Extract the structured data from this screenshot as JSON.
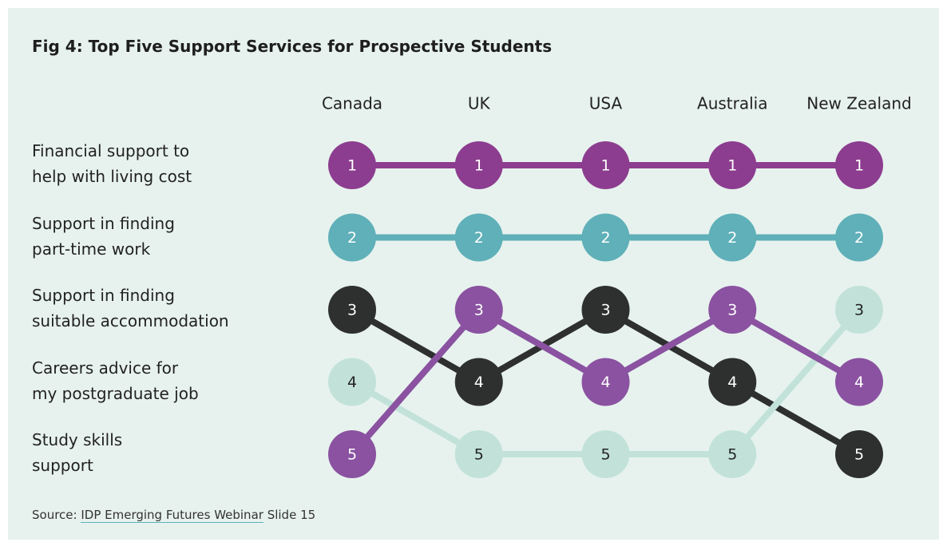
{
  "chart_data": {
    "type": "bump",
    "title": "Fig 4: Top Five Support Services for Prospective Students",
    "categories": [
      "Canada",
      "UK",
      "USA",
      "Australia",
      "New Zealand"
    ],
    "ylim": [
      1,
      5
    ],
    "series": [
      {
        "name": "Financial support to\nhelp with living cost",
        "color": "#8c3d8f",
        "text_color": "#ffffff",
        "values": [
          1,
          1,
          1,
          1,
          1
        ]
      },
      {
        "name": "Support in finding\npart-time work",
        "color": "#5fb0b8",
        "text_color": "#ffffff",
        "values": [
          2,
          2,
          2,
          2,
          2
        ]
      },
      {
        "name": "Support in finding\nsuitable accommodation",
        "color": "#2e302f",
        "text_color": "#ffffff",
        "values": [
          3,
          4,
          3,
          4,
          5
        ]
      },
      {
        "name": "Careers advice for\nmy postgraduate job",
        "color": "#c2e2d9",
        "text_color": "#222222",
        "values": [
          4,
          5,
          5,
          5,
          3
        ]
      },
      {
        "name": "Study skills\nsupport",
        "color": "#8a52a0",
        "text_color": "#ffffff",
        "values": [
          5,
          3,
          4,
          3,
          4
        ]
      }
    ],
    "source": {
      "prefix": "Source: ",
      "link": "IDP Emerging Futures Webinar",
      "suffix": " Slide 15"
    }
  }
}
